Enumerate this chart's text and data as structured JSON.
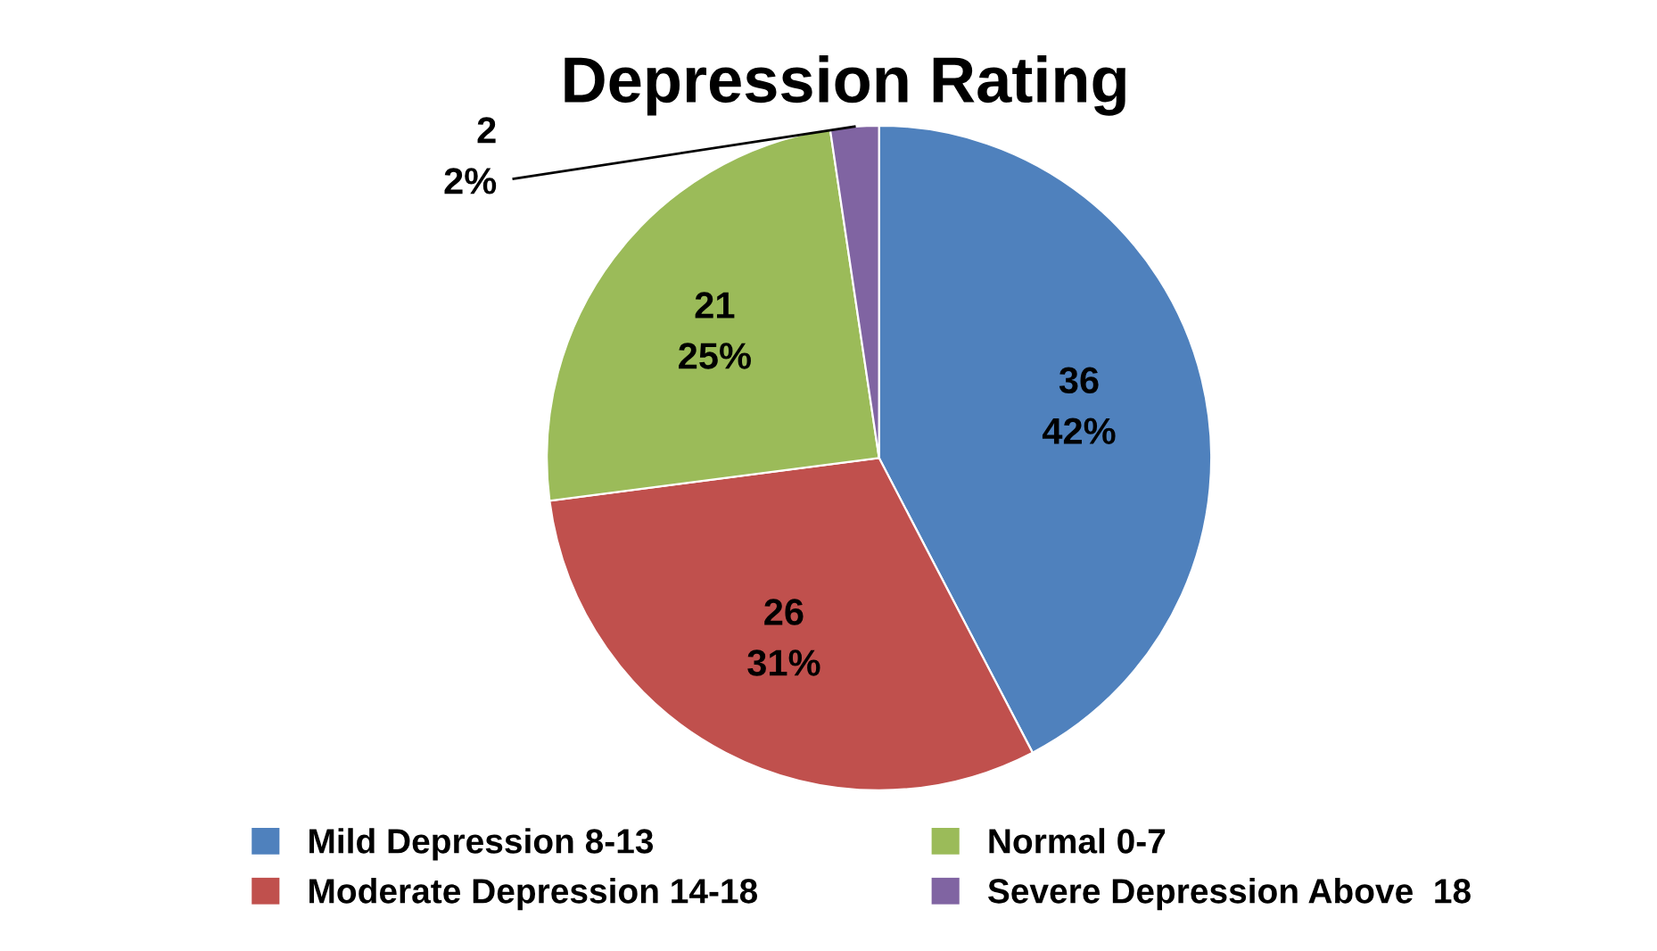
{
  "chart_data": {
    "type": "pie",
    "title": "Depression Rating",
    "categories": [
      "Mild Depression 8-13",
      "Moderate Depression 14-18",
      "Normal 0-7",
      "Severe Depression Above  18"
    ],
    "values": [
      36,
      26,
      21,
      2
    ],
    "colors": [
      "#4f81bd",
      "#c0504d",
      "#9bbb59",
      "#8064a2"
    ],
    "value_labels": [
      "36\n42%",
      "26\n31%",
      "21\n25%",
      "2\n2%"
    ],
    "legend": "bottom"
  }
}
